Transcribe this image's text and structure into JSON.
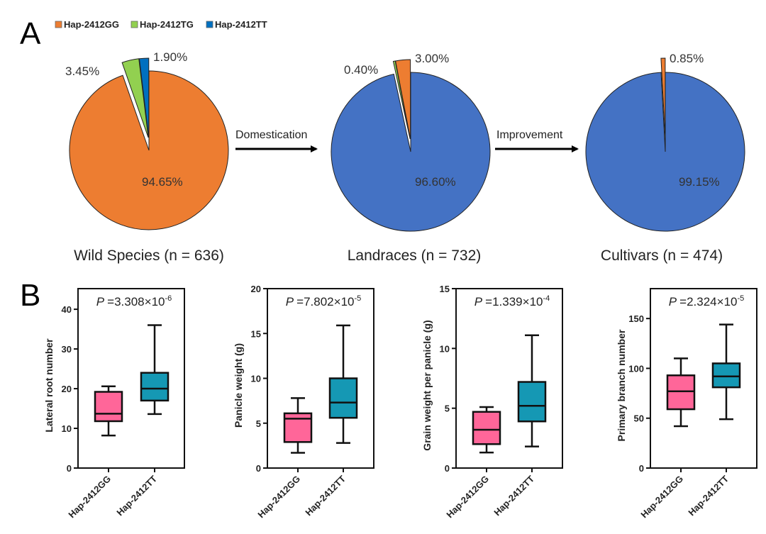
{
  "panel_a": {
    "letter": "A",
    "legend": [
      {
        "label": "Hap-2412GG",
        "color": "#ED7D31"
      },
      {
        "label": "Hap-2412TG",
        "color": "#92D050"
      },
      {
        "label": "Hap-2412TT",
        "color": "#0070C0"
      }
    ],
    "arrows": [
      {
        "label": "Domestication"
      },
      {
        "label": "Improvement"
      }
    ]
  },
  "panel_b": {
    "letter": "B"
  },
  "chart_data": [
    {
      "type": "pie",
      "title": "Wild Species (n = 636)",
      "categories": [
        "Hap-2412GG",
        "Hap-2412TG",
        "Hap-2412TT"
      ],
      "values": [
        94.65,
        3.45,
        1.9
      ],
      "labels": [
        "94.65%",
        "3.45%",
        "1.90%"
      ],
      "colors": [
        "#ED7D31",
        "#92D050",
        "#0070C0"
      ],
      "exploded": [
        false,
        true,
        true
      ]
    },
    {
      "type": "pie",
      "title": "Landraces (n = 732)",
      "categories": [
        "Hap-2412TT",
        "Hap-2412TG",
        "Hap-2412GG"
      ],
      "values": [
        96.6,
        0.4,
        3.0
      ],
      "labels": [
        "96.60%",
        "0.40%",
        "3.00%"
      ],
      "colors": [
        "#4472C4",
        "#92D050",
        "#ED7D31"
      ],
      "exploded": [
        false,
        true,
        true
      ]
    },
    {
      "type": "pie",
      "title": "Cultivars (n = 474)",
      "categories": [
        "Hap-2412TT",
        "Hap-2412GG"
      ],
      "values": [
        99.15,
        0.85
      ],
      "labels": [
        "99.15%",
        "0.85%"
      ],
      "colors": [
        "#4472C4",
        "#ED7D31"
      ],
      "exploded": [
        false,
        true
      ]
    },
    {
      "type": "box",
      "ylabel": "Lateral root number",
      "pvalue": {
        "prefix": "P",
        "mantissa": "=3.308×10",
        "exponent": "-6"
      },
      "categories": [
        "Hap-2412GG",
        "Hap-2412TT"
      ],
      "ylim": [
        0,
        45.2
      ],
      "yticks": [
        0,
        10,
        20,
        30,
        40
      ],
      "series": [
        {
          "name": "Hap-2412GG",
          "min": 8.2,
          "q1": 11.8,
          "median": 13.7,
          "q3": 19.2,
          "max": 20.6,
          "color": "#FF6699"
        },
        {
          "name": "Hap-2412TT",
          "min": 13.6,
          "q1": 17.0,
          "median": 20.0,
          "q3": 24.0,
          "max": 36.0,
          "color": "#1598B4"
        }
      ]
    },
    {
      "type": "box",
      "ylabel": "Panicle weight (g)",
      "pvalue": {
        "prefix": "P",
        "mantissa": "=7.802×10",
        "exponent": "-5"
      },
      "categories": [
        "Hap-2412GG",
        "Hap-2412TT"
      ],
      "ylim": [
        0,
        20
      ],
      "yticks": [
        0,
        5,
        10,
        15,
        20
      ],
      "series": [
        {
          "name": "Hap-2412GG",
          "min": 1.7,
          "q1": 2.9,
          "median": 5.5,
          "q3": 6.1,
          "max": 7.8,
          "color": "#FF6699"
        },
        {
          "name": "Hap-2412TT",
          "min": 2.8,
          "q1": 5.6,
          "median": 7.3,
          "q3": 10.0,
          "max": 15.9,
          "color": "#1598B4"
        }
      ]
    },
    {
      "type": "box",
      "ylabel": "Grain weight per panicle (g)",
      "pvalue": {
        "prefix": "P",
        "mantissa": "=1.339×10",
        "exponent": "-4"
      },
      "categories": [
        "Hap-2412GG",
        "Hap-2412TT"
      ],
      "ylim": [
        0,
        15
      ],
      "yticks": [
        0,
        5,
        10,
        15
      ],
      "series": [
        {
          "name": "Hap-2412GG",
          "min": 1.3,
          "q1": 2.0,
          "median": 3.2,
          "q3": 4.7,
          "max": 5.1,
          "color": "#FF6699"
        },
        {
          "name": "Hap-2412TT",
          "min": 1.8,
          "q1": 3.9,
          "median": 5.2,
          "q3": 7.2,
          "max": 11.1,
          "color": "#1598B4"
        }
      ]
    },
    {
      "type": "box",
      "ylabel": "Primary branch number",
      "pvalue": {
        "prefix": "P",
        "mantissa": "=2.324×10",
        "exponent": "-5"
      },
      "categories": [
        "Hap-2412GG",
        "Hap-2412TT"
      ],
      "ylim": [
        0,
        180
      ],
      "yticks": [
        0,
        50,
        100,
        150
      ],
      "series": [
        {
          "name": "Hap-2412GG",
          "min": 42,
          "q1": 59,
          "median": 77,
          "q3": 93,
          "max": 110,
          "color": "#FF6699"
        },
        {
          "name": "Hap-2412TT",
          "min": 49,
          "q1": 81,
          "median": 92,
          "q3": 105,
          "max": 144,
          "color": "#1598B4"
        }
      ]
    }
  ]
}
